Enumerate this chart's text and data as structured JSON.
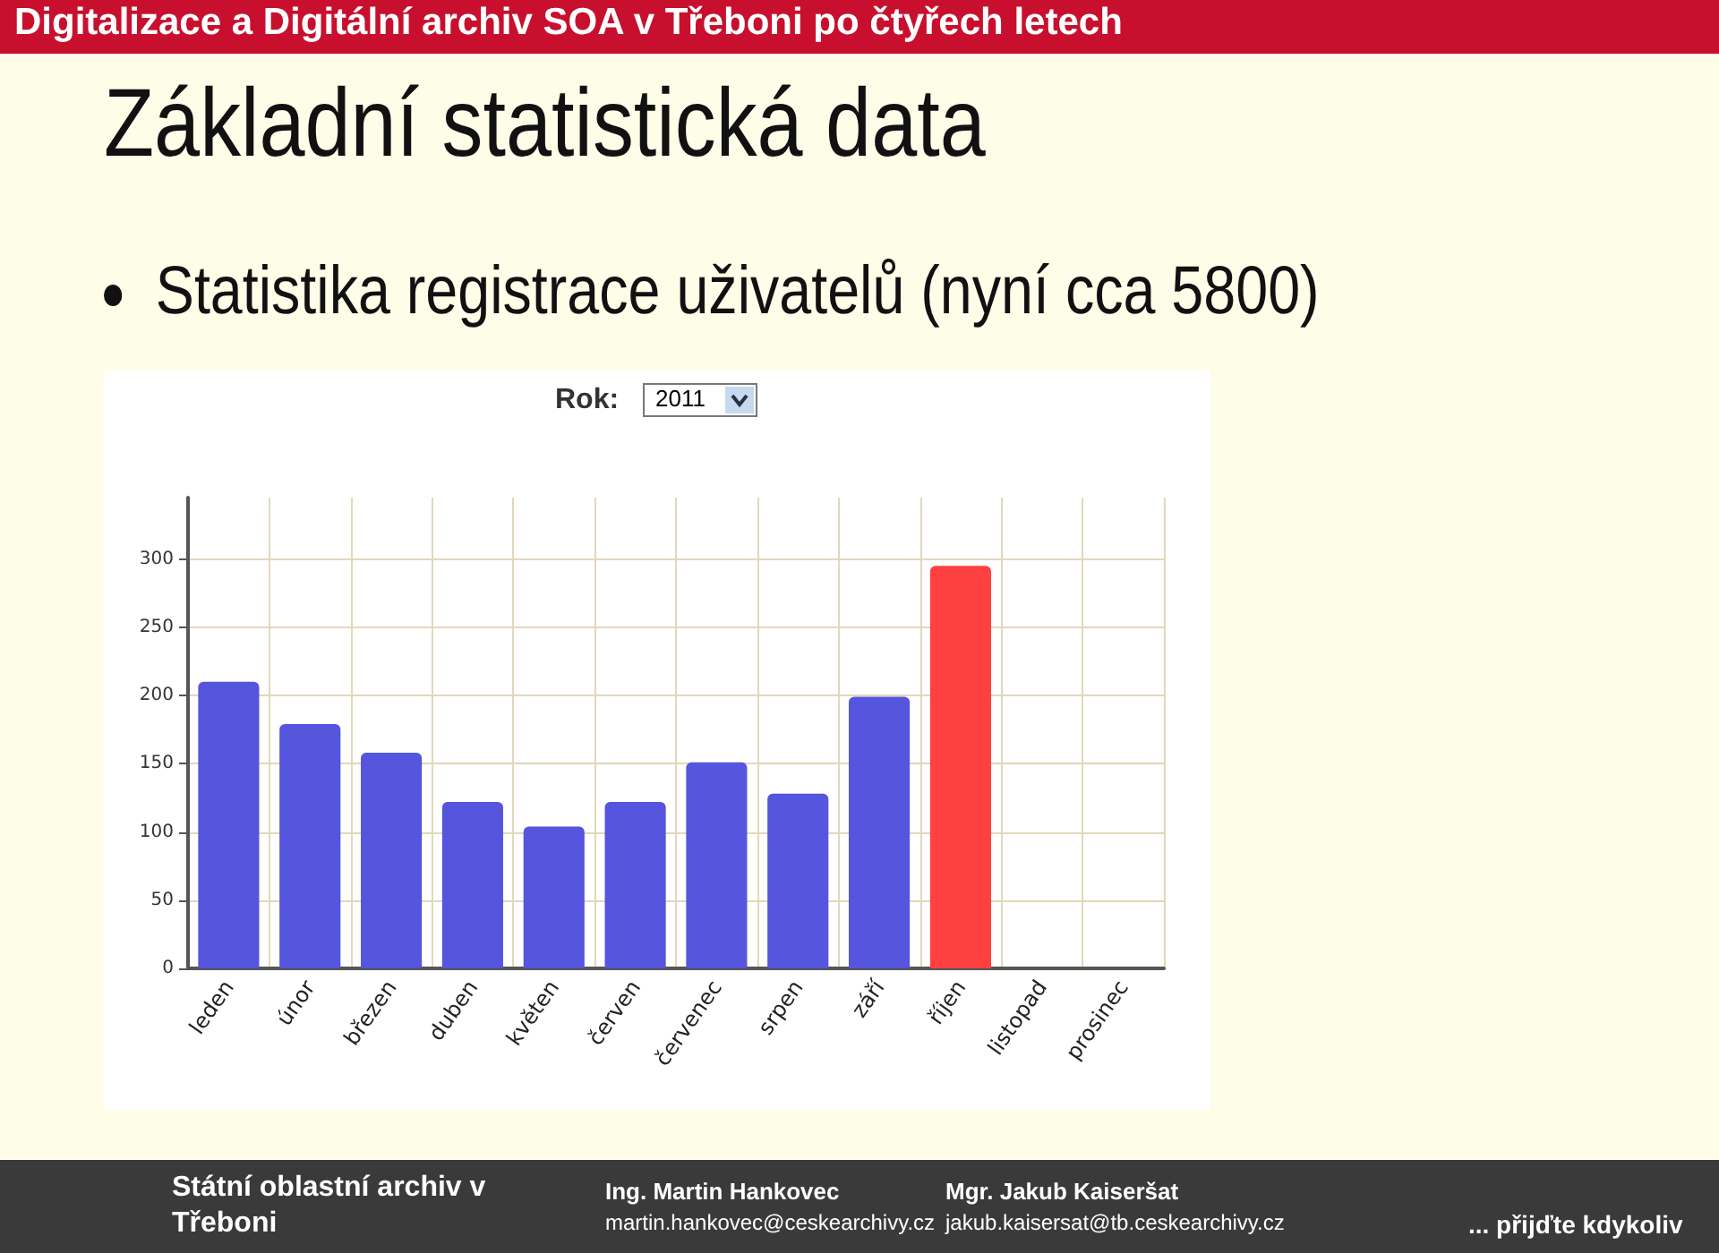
{
  "chart_data": {
    "type": "bar",
    "title": "Digitalizace a Digitální archiv SOA v Třeboni po čtyřech letech",
    "subtitle": "Základní statistická data",
    "annotations": [
      "Statistika registrace uživatelů (nyní cca 5800)",
      "Rok:",
      "2011",
      "Státní oblastní archiv v Třeboni",
      "Ing. Martin Hankovec",
      "martin.hankovec@ceskearchivy.cz",
      "Mgr. Jakub Kaiseršat",
      "jakub.kaisersat@tb.ceskearchivy.cz",
      "... přijďte kdykoliv"
    ],
    "categories": [
      "leden",
      "únor",
      "březen",
      "duben",
      "květen",
      "červen",
      "červenec",
      "srpen",
      "září",
      "říjen",
      "listopad",
      "prosinec"
    ],
    "values": [
      210,
      179,
      158,
      122,
      104,
      122,
      151,
      128,
      199,
      295,
      null,
      null
    ],
    "colors": [
      "#5555dd",
      "#5555dd",
      "#5555dd",
      "#5555dd",
      "#5555dd",
      "#5555dd",
      "#5555dd",
      "#5555dd",
      "#5555dd",
      "#ff4040",
      "#5555dd",
      "#5555dd"
    ],
    "ylim": [
      0,
      345
    ],
    "yticks": [
      0,
      50,
      100,
      150,
      200,
      250,
      300
    ],
    "grid": true
  }
}
